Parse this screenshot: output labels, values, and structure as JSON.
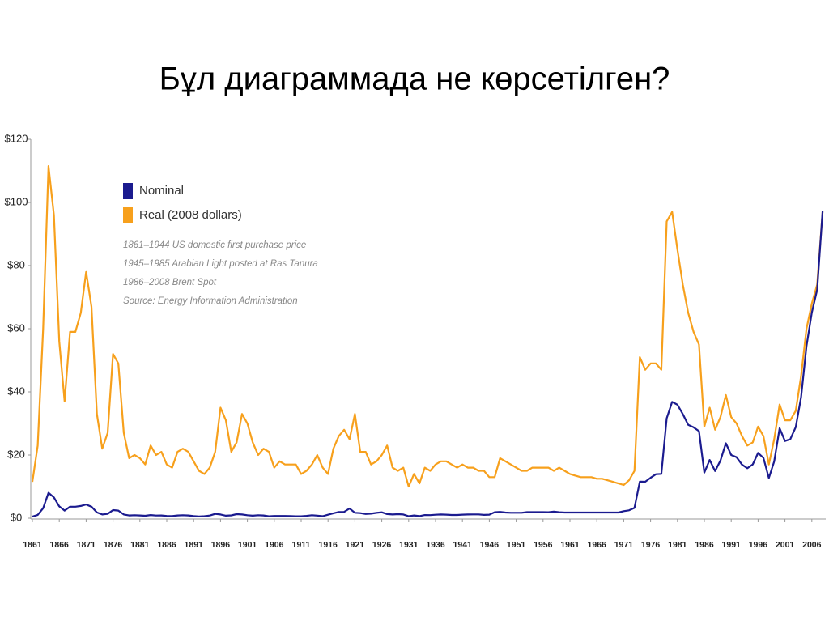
{
  "title": "Бұл диаграммада не көрсетілген?",
  "chart_data": {
    "type": "line",
    "legend_position": "upper left",
    "notes": [
      "1861–1944 US domestic first purchase price",
      "1945–1985 Arabian Light posted at Ras Tanura",
      "1986–2008 Brent Spot",
      "Source: Energy Information Administration"
    ],
    "x": [
      1861,
      1862,
      1863,
      1864,
      1865,
      1866,
      1867,
      1868,
      1869,
      1870,
      1871,
      1872,
      1873,
      1874,
      1875,
      1876,
      1877,
      1878,
      1879,
      1880,
      1881,
      1882,
      1883,
      1884,
      1885,
      1886,
      1887,
      1888,
      1889,
      1890,
      1891,
      1892,
      1893,
      1894,
      1895,
      1896,
      1897,
      1898,
      1899,
      1900,
      1901,
      1902,
      1903,
      1904,
      1905,
      1906,
      1907,
      1908,
      1909,
      1910,
      1911,
      1912,
      1913,
      1914,
      1915,
      1916,
      1917,
      1918,
      1919,
      1920,
      1921,
      1922,
      1923,
      1924,
      1925,
      1926,
      1927,
      1928,
      1929,
      1930,
      1931,
      1932,
      1933,
      1934,
      1935,
      1936,
      1937,
      1938,
      1939,
      1940,
      1941,
      1942,
      1943,
      1944,
      1945,
      1946,
      1947,
      1948,
      1949,
      1950,
      1951,
      1952,
      1953,
      1954,
      1955,
      1956,
      1957,
      1958,
      1959,
      1960,
      1961,
      1962,
      1963,
      1964,
      1965,
      1966,
      1967,
      1968,
      1969,
      1970,
      1971,
      1972,
      1973,
      1974,
      1975,
      1976,
      1977,
      1978,
      1979,
      1980,
      1981,
      1982,
      1983,
      1984,
      1985,
      1986,
      1987,
      1988,
      1989,
      1990,
      1991,
      1992,
      1993,
      1994,
      1995,
      1996,
      1997,
      1998,
      1999,
      2000,
      2001,
      2002,
      2003,
      2004,
      2005,
      2006,
      2007,
      2008
    ],
    "series": [
      {
        "name": "Nominal",
        "color": "#1b1b8f",
        "values": [
          0.49,
          1.05,
          3.15,
          8.06,
          6.59,
          3.74,
          2.41,
          3.63,
          3.64,
          3.86,
          4.34,
          3.64,
          1.83,
          1.17,
          1.35,
          2.56,
          2.42,
          1.19,
          0.86,
          0.95,
          0.86,
          0.78,
          1.0,
          0.84,
          0.88,
          0.71,
          0.67,
          0.88,
          0.94,
          0.87,
          0.67,
          0.56,
          0.64,
          0.84,
          1.36,
          1.18,
          0.79,
          0.91,
          1.29,
          1.19,
          0.96,
          0.8,
          0.94,
          0.86,
          0.62,
          0.73,
          0.72,
          0.72,
          0.7,
          0.61,
          0.61,
          0.74,
          0.95,
          0.81,
          0.64,
          1.1,
          1.56,
          1.98,
          2.01,
          3.07,
          1.73,
          1.61,
          1.34,
          1.43,
          1.68,
          1.88,
          1.3,
          1.17,
          1.27,
          1.19,
          0.65,
          0.87,
          0.67,
          1.0,
          0.97,
          1.09,
          1.18,
          1.13,
          1.02,
          1.02,
          1.14,
          1.19,
          1.2,
          1.21,
          1.05,
          1.12,
          1.9,
          1.99,
          1.8,
          1.71,
          1.71,
          1.71,
          1.93,
          1.93,
          1.93,
          1.93,
          1.9,
          2.08,
          1.9,
          1.8,
          1.8,
          1.8,
          1.8,
          1.8,
          1.8,
          1.8,
          1.8,
          1.8,
          1.8,
          1.8,
          2.24,
          2.48,
          3.29,
          11.58,
          11.53,
          12.8,
          13.92,
          14.02,
          31.61,
          36.83,
          35.93,
          32.97,
          29.55,
          28.78,
          27.56,
          14.43,
          18.44,
          14.92,
          18.23,
          23.73,
          20.0,
          19.32,
          16.97,
          15.82,
          17.02,
          20.67,
          19.09,
          12.72,
          17.97,
          28.5,
          24.44,
          25.02,
          28.83,
          38.27,
          54.52,
          65.14,
          72.39,
          97.26
        ]
      },
      {
        "name": "Real (2008 dollars)",
        "color": "#f7a01c",
        "values": [
          11.5,
          23,
          60,
          111.5,
          96,
          56,
          37,
          59,
          59,
          65,
          78,
          67,
          33,
          22,
          27,
          52,
          49,
          27,
          19,
          20,
          19,
          17,
          23,
          20,
          21,
          17,
          16,
          21,
          22,
          21,
          18,
          15,
          14,
          16,
          21,
          35,
          31,
          21,
          24,
          33,
          30,
          24,
          20,
          22,
          21,
          16,
          18,
          17,
          17,
          17,
          14,
          15,
          17,
          20,
          16,
          14,
          22,
          26,
          28,
          25,
          33,
          21,
          21,
          17,
          18,
          20,
          23,
          16,
          15,
          16,
          10,
          14,
          11,
          16,
          15,
          17,
          18,
          18,
          17,
          16,
          17,
          16,
          16,
          15,
          15,
          13,
          13,
          19,
          18,
          17,
          16,
          15,
          15,
          16,
          16,
          16,
          16,
          15,
          16,
          15,
          14,
          13.5,
          13,
          13,
          13,
          12.5,
          12.5,
          12,
          11.5,
          11,
          10.5,
          12,
          15,
          51,
          47,
          49,
          49,
          47,
          94,
          97,
          85,
          74,
          65,
          59,
          55,
          29,
          35,
          28,
          32,
          39,
          32,
          30,
          26,
          23,
          24,
          29,
          26,
          17,
          25,
          36,
          31,
          31,
          34,
          45,
          60,
          68,
          74,
          97
        ]
      }
    ],
    "xlim": [
      1861,
      2009
    ],
    "xticks": [
      1861,
      1866,
      1871,
      1876,
      1881,
      1886,
      1891,
      1896,
      1901,
      1906,
      1911,
      1916,
      1921,
      1926,
      1931,
      1936,
      1941,
      1946,
      1951,
      1956,
      1961,
      1966,
      1971,
      1976,
      1981,
      1986,
      1991,
      1996,
      2001,
      2006
    ],
    "ylim": [
      0,
      120
    ],
    "yticks": [
      {
        "value": 0,
        "label": "$0"
      },
      {
        "value": 20,
        "label": "$20"
      },
      {
        "value": 40,
        "label": "$40"
      },
      {
        "value": 60,
        "label": "$60"
      },
      {
        "value": 80,
        "label": "$80"
      },
      {
        "value": 100,
        "label": "$100"
      },
      {
        "value": 120,
        "label": "$120"
      }
    ],
    "grid": false
  }
}
